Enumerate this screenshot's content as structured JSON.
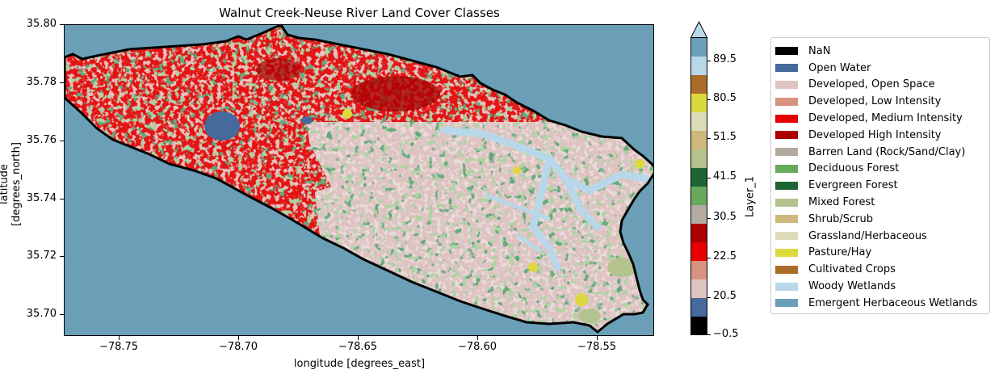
{
  "map": {
    "title": "Walnut Creek-Neuse River Land Cover Classes",
    "xlabel": "longitude [degrees_east]",
    "ylabel": "latitude [degrees_north]",
    "x_ticks": [
      "−78.75",
      "−78.70",
      "−78.65",
      "−78.60",
      "−78.55"
    ],
    "y_ticks": [
      "35.80",
      "35.78",
      "35.76",
      "35.74",
      "35.72",
      "35.70"
    ],
    "x_range": [
      -78.782,
      -78.532
    ],
    "y_range": [
      35.693,
      35.8
    ],
    "background_color": "#6a9fb7"
  },
  "colorbar": {
    "title": "Layer_1",
    "labels": [
      "−0.5",
      "20.5",
      "22.5",
      "30.5",
      "41.5",
      "51.5",
      "80.5",
      "89.5"
    ],
    "colors": [
      "#000000",
      "#456a9b",
      "#dfc3c3",
      "#d79380",
      "#e80000",
      "#ac0000",
      "#b4aba0",
      "#68a95c",
      "#1d6532",
      "#b4c38e",
      "#ceb97c",
      "#dcdcb9",
      "#dcd93e",
      "#aa6c29",
      "#b8d8ea",
      "#6b9fb8"
    ],
    "extend": "max"
  },
  "legend": {
    "entries": [
      {
        "label": "NaN",
        "color": "#000000"
      },
      {
        "label": "Open Water",
        "color": "#456a9b"
      },
      {
        "label": "Developed, Open Space",
        "color": "#dfc3c3"
      },
      {
        "label": "Developed, Low Intensity",
        "color": "#d79380"
      },
      {
        "label": "Developed, Medium Intensity",
        "color": "#e80000"
      },
      {
        "label": "Developed High Intensity",
        "color": "#ac0000"
      },
      {
        "label": "Barren Land (Rock/Sand/Clay)",
        "color": "#b4aba0"
      },
      {
        "label": "Deciduous Forest",
        "color": "#68a95c"
      },
      {
        "label": "Evergreen Forest",
        "color": "#1d6532"
      },
      {
        "label": "Mixed Forest",
        "color": "#b4c38e"
      },
      {
        "label": "Shrub/Scrub",
        "color": "#ceb97c"
      },
      {
        "label": "Grassland/Herbaceous",
        "color": "#dcdcb9"
      },
      {
        "label": "Pasture/Hay",
        "color": "#dcd93e"
      },
      {
        "label": "Cultivated Crops",
        "color": "#aa6c29"
      },
      {
        "label": "Woody Wetlands",
        "color": "#b8d8ea"
      },
      {
        "label": "Emergent Herbaceous Wetlands",
        "color": "#6b9fb8"
      }
    ]
  }
}
